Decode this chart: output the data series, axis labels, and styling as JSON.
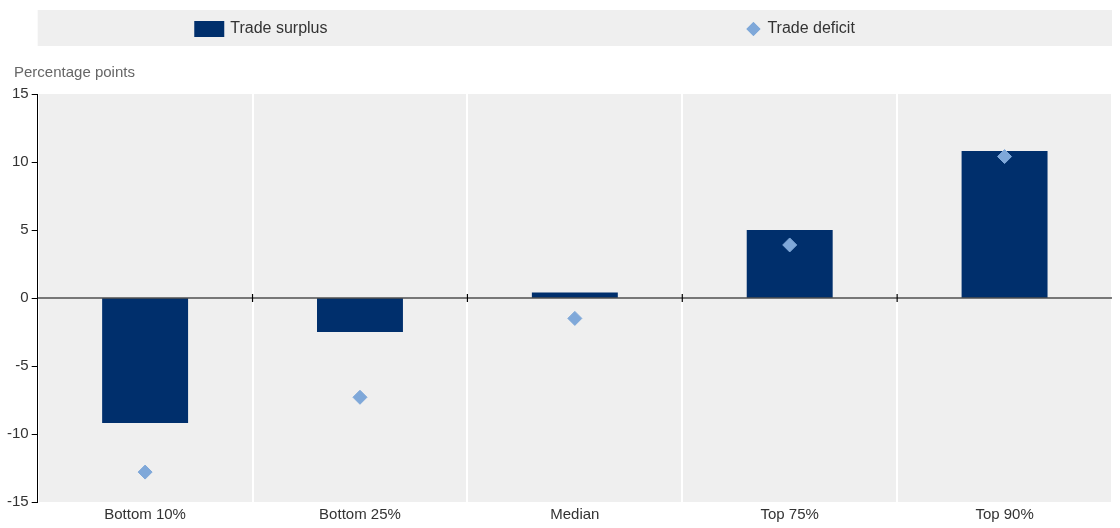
{
  "chart_data": {
    "type": "bar",
    "ylabel": "Percentage points",
    "categories": [
      "Bottom 10%",
      "Bottom 25%",
      "Median",
      "Top 75%",
      "Top 90%"
    ],
    "series": [
      {
        "name": "Trade surplus",
        "color": "#002f6c",
        "values": [
          -9.2,
          -2.5,
          0.4,
          5.0,
          10.8
        ]
      },
      {
        "name": "Trade deficit",
        "type": "scatter",
        "color": "#7fa8d9",
        "x": [
          "Bottom 10%",
          "Bottom 25%",
          "Median",
          "Top 75%",
          "Top 90%"
        ],
        "values": [
          -12.8,
          -7.3,
          -1.5,
          3.9,
          10.4
        ]
      }
    ],
    "ylim": [
      -15,
      15
    ],
    "yticks": [
      -15,
      -10,
      -5,
      0,
      5,
      10,
      15
    ],
    "grid": "x",
    "legend": "top",
    "marker": "diamond"
  }
}
